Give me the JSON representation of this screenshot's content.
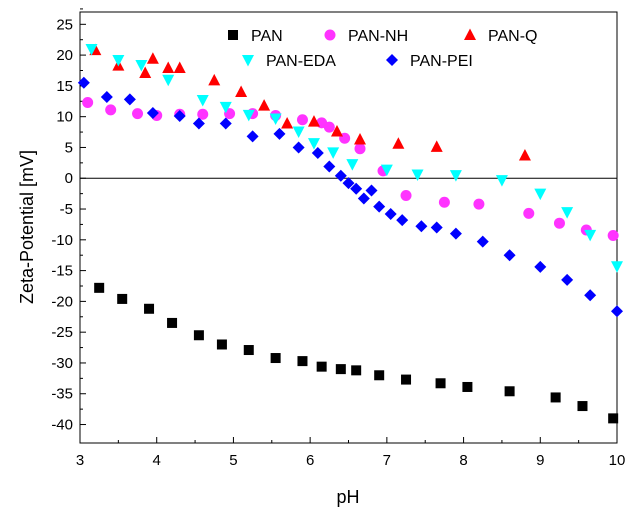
{
  "chart_data": {
    "type": "scatter",
    "xlabel": "pH",
    "ylabel": "Zeta-Potential [mV]",
    "xlim": [
      3,
      10
    ],
    "ylim": [
      -43,
      27
    ],
    "x_ticks": [
      "3",
      "4",
      "5",
      "6",
      "7",
      "8",
      "9",
      "10"
    ],
    "y_ticks": [
      "-40",
      "-35",
      "-30",
      "-25",
      "-20",
      "-15",
      "-10",
      "-5",
      "0",
      "5",
      "10",
      "15",
      "20",
      "25"
    ],
    "zero_line": true,
    "grid": false,
    "legend_placement": "top-right",
    "series": [
      {
        "name": "PAN",
        "marker": "square",
        "color": "#000000",
        "points": [
          [
            3.25,
            -17.8
          ],
          [
            3.55,
            -19.6
          ],
          [
            3.9,
            -21.2
          ],
          [
            4.2,
            -23.5
          ],
          [
            4.55,
            -25.5
          ],
          [
            4.85,
            -27.0
          ],
          [
            5.2,
            -27.9
          ],
          [
            5.55,
            -29.2
          ],
          [
            5.9,
            -29.7
          ],
          [
            6.15,
            -30.6
          ],
          [
            6.4,
            -31.0
          ],
          [
            6.6,
            -31.2
          ],
          [
            6.9,
            -32.0
          ],
          [
            7.25,
            -32.7
          ],
          [
            7.7,
            -33.3
          ],
          [
            8.05,
            -33.9
          ],
          [
            8.6,
            -34.6
          ],
          [
            9.2,
            -35.6
          ],
          [
            9.55,
            -37.0
          ],
          [
            9.95,
            -39.0
          ]
        ]
      },
      {
        "name": "PAN-NH",
        "marker": "circle",
        "color": "#ff33ff",
        "points": [
          [
            3.1,
            12.3
          ],
          [
            3.4,
            11.1
          ],
          [
            3.75,
            10.5
          ],
          [
            4.0,
            10.2
          ],
          [
            4.3,
            10.4
          ],
          [
            4.6,
            10.4
          ],
          [
            4.95,
            10.5
          ],
          [
            5.25,
            10.5
          ],
          [
            5.55,
            10.2
          ],
          [
            5.9,
            9.5
          ],
          [
            6.15,
            9.0
          ],
          [
            6.25,
            8.3
          ],
          [
            6.45,
            6.5
          ],
          [
            6.65,
            4.8
          ],
          [
            6.95,
            1.2
          ],
          [
            7.25,
            -2.8
          ],
          [
            7.75,
            -3.9
          ],
          [
            8.2,
            -4.2
          ],
          [
            8.85,
            -5.7
          ],
          [
            9.25,
            -7.3
          ],
          [
            9.6,
            -8.4
          ],
          [
            9.95,
            -9.3
          ]
        ]
      },
      {
        "name": "PAN-Q",
        "marker": "triangle-up",
        "color": "#ff0000",
        "points": [
          [
            3.2,
            20.8
          ],
          [
            3.5,
            18.3
          ],
          [
            3.85,
            17.1
          ],
          [
            3.95,
            19.4
          ],
          [
            4.15,
            17.9
          ],
          [
            4.3,
            17.9
          ],
          [
            4.75,
            15.9
          ],
          [
            5.1,
            14.0
          ],
          [
            5.4,
            11.8
          ],
          [
            5.7,
            8.9
          ],
          [
            6.05,
            9.2
          ],
          [
            6.35,
            7.6
          ],
          [
            6.65,
            6.3
          ],
          [
            7.15,
            5.6
          ],
          [
            7.65,
            5.1
          ],
          [
            8.8,
            3.7
          ]
        ]
      },
      {
        "name": "PAN-EDA",
        "marker": "triangle-down",
        "color": "#00ffff",
        "points": [
          [
            3.15,
            21.0
          ],
          [
            3.5,
            19.2
          ],
          [
            3.8,
            18.4
          ],
          [
            4.15,
            16.0
          ],
          [
            4.6,
            12.7
          ],
          [
            4.9,
            11.6
          ],
          [
            5.2,
            10.3
          ],
          [
            5.55,
            9.7
          ],
          [
            5.85,
            7.6
          ],
          [
            6.05,
            5.7
          ],
          [
            6.3,
            4.2
          ],
          [
            6.55,
            2.3
          ],
          [
            7.0,
            1.4
          ],
          [
            7.4,
            0.6
          ],
          [
            7.9,
            0.5
          ],
          [
            8.5,
            -0.3
          ],
          [
            9.0,
            -2.5
          ],
          [
            9.35,
            -5.5
          ],
          [
            9.65,
            -9.2
          ],
          [
            10.0,
            -14.3
          ]
        ]
      },
      {
        "name": "PAN-PEI",
        "marker": "diamond",
        "color": "#0000ff",
        "points": [
          [
            3.05,
            15.5
          ],
          [
            3.35,
            13.2
          ],
          [
            3.65,
            12.8
          ],
          [
            3.95,
            10.6
          ],
          [
            4.3,
            10.1
          ],
          [
            4.55,
            8.9
          ],
          [
            4.9,
            8.9
          ],
          [
            5.25,
            6.8
          ],
          [
            5.6,
            7.2
          ],
          [
            5.85,
            5.0
          ],
          [
            6.1,
            4.1
          ],
          [
            6.25,
            1.9
          ],
          [
            6.4,
            0.4
          ],
          [
            6.5,
            -0.8
          ],
          [
            6.6,
            -1.7
          ],
          [
            6.7,
            -3.3
          ],
          [
            6.8,
            -2.0
          ],
          [
            6.9,
            -4.6
          ],
          [
            7.05,
            -5.8
          ],
          [
            7.2,
            -6.8
          ],
          [
            7.45,
            -7.8
          ],
          [
            7.65,
            -8.0
          ],
          [
            7.9,
            -9.0
          ],
          [
            8.25,
            -10.3
          ],
          [
            8.6,
            -12.5
          ],
          [
            9.0,
            -14.4
          ],
          [
            9.35,
            -16.5
          ],
          [
            9.65,
            -19.0
          ],
          [
            10.0,
            -21.6
          ]
        ]
      }
    ]
  }
}
